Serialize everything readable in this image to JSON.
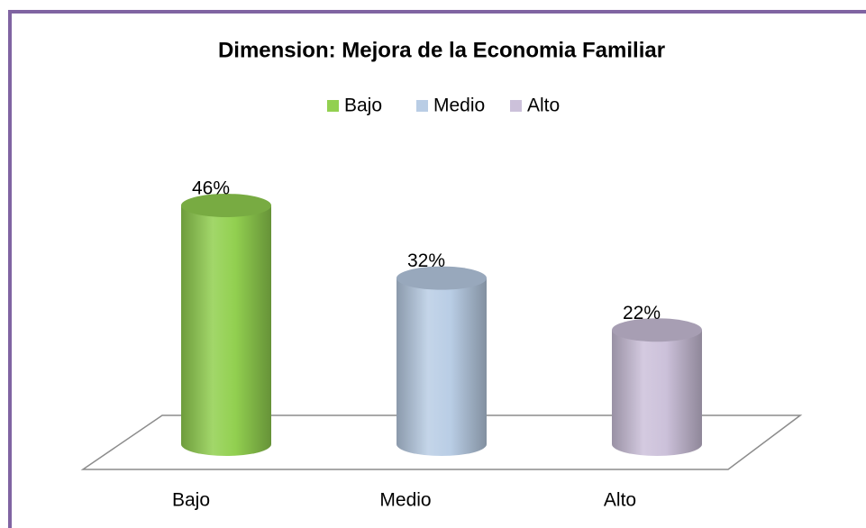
{
  "chart_data": {
    "type": "bar",
    "title": "Dimension: Mejora de la Economia Familiar",
    "categories": [
      "Bajo",
      "Medio",
      "Alto"
    ],
    "values": [
      46,
      32,
      22
    ],
    "value_labels": [
      "46%",
      "32%",
      "22%"
    ],
    "colors": [
      "#92d050",
      "#b9cde5",
      "#ccc1da"
    ],
    "ylim": [
      0,
      50
    ],
    "legend": "top"
  }
}
